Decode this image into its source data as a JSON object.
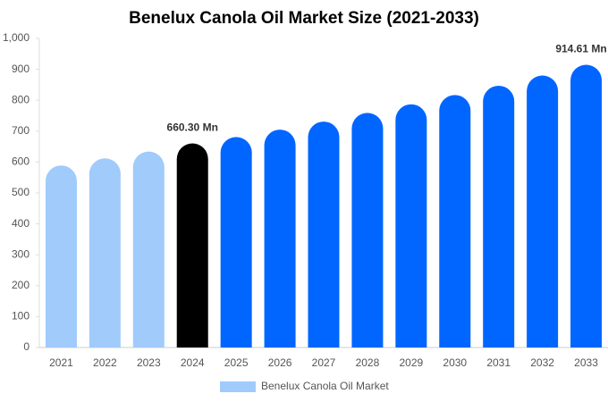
{
  "chart_data": {
    "type": "bar",
    "title": "Benelux Canola Oil Market Size (2021-2033)",
    "categories": [
      "2021",
      "2022",
      "2023",
      "2024",
      "2025",
      "2026",
      "2027",
      "2028",
      "2029",
      "2030",
      "2031",
      "2032",
      "2033"
    ],
    "series": [
      {
        "name": "Benelux Canola Oil Market",
        "color": "#a0cbfb",
        "colors": [
          "#a0cbfb",
          "#a0cbfb",
          "#a0cbfb",
          "#000000",
          "#0066ff",
          "#0066ff",
          "#0066ff",
          "#0066ff",
          "#0066ff",
          "#0066ff",
          "#0066ff",
          "#0066ff",
          "#0066ff"
        ],
        "values": [
          589,
          612,
          634,
          660.3,
          681,
          705,
          731,
          759,
          787,
          817,
          847,
          880,
          914.61
        ],
        "value_labels": [
          null,
          null,
          null,
          "660.30 Mn",
          null,
          null,
          null,
          null,
          null,
          null,
          null,
          null,
          "914.61 Mn"
        ]
      }
    ],
    "ylim": [
      0,
      1000
    ],
    "yticks": [
      0,
      100,
      200,
      300,
      400,
      500,
      600,
      700,
      800,
      900,
      {
        "value": 1000,
        "label": "1,000"
      }
    ],
    "grid": false
  }
}
